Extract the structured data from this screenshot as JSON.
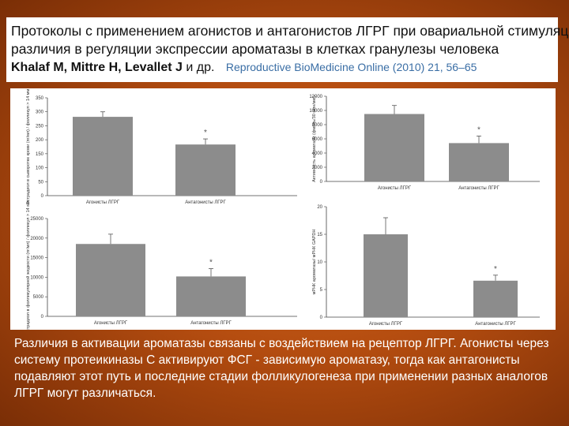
{
  "header": {
    "line1": "Протоколы с применением агонистов и антагонистов ЛГРГ при овариальной стимуляции:",
    "line2": "различия в регуляции экспрессии ароматазы в клетках гранулезы человека",
    "authors_bold": "Khalaf M, Mittre H, Levallet J",
    "authors_suffix": "и др.",
    "journal": "Reproductive BioMedicine Online (2010) 21, 56–65"
  },
  "caption": "Различия в активации ароматазы связаны с воздействием на рецептор ЛГРГ. Агонисты через систему протеикиназы С активируют ФСГ - зависимую ароматазу, тогда как антагонисты подавляют этот путь и последние стадии фолликулогенеза при применении разных аналогов ЛГРГ могут различаться.",
  "colors": {
    "background": "#b54d10",
    "bar": "#8c8c8c",
    "caption_text": "#ffffff",
    "journal_text": "#3a6ea5"
  },
  "chart_data": [
    {
      "type": "bar",
      "categories": [
        "Агонисты ЛГРГ",
        "Антагонисты ЛГРГ"
      ],
      "values": [
        282,
        183
      ],
      "errors": [
        18,
        20
      ],
      "annotations": [
        "",
        "*"
      ],
      "ylabel": "Эстрадиол в сыворотке крови (пг/мл) / фолликул > 14 мм",
      "ylim": [
        0,
        350
      ],
      "yticks": [
        0,
        50,
        100,
        150,
        200,
        250,
        300,
        350
      ]
    },
    {
      "type": "bar",
      "categories": [
        "Агонисты ЛГРГ",
        "Антагонисты ЛГРГ"
      ],
      "values": [
        9500,
        5400
      ],
      "errors": [
        1200,
        1000
      ],
      "annotations": [
        "",
        "*"
      ],
      "ylabel": "Активность ароматазы (фмоль/30 мин/мкг)",
      "ylim": [
        0,
        12000
      ],
      "yticks": [
        0,
        2000,
        4000,
        6000,
        8000,
        10000,
        12000
      ]
    },
    {
      "type": "bar",
      "categories": [
        "Агонисты ЛГРГ",
        "Антагонисты ЛГРГ"
      ],
      "values": [
        18500,
        10200
      ],
      "errors": [
        2500,
        2000
      ],
      "annotations": [
        "",
        "*"
      ],
      "ylabel": "Эстрадиол в фолликулярной жидкости (пг/мл) / фолликул > 14 мм",
      "ylim": [
        0,
        25000
      ],
      "yticks": [
        0,
        5000,
        10000,
        15000,
        20000,
        25000
      ]
    },
    {
      "type": "bar",
      "categories": [
        "Агонисты ЛГРГ",
        "Антагонисты ЛГРГ"
      ],
      "values": [
        15,
        6.6
      ],
      "errors": [
        3,
        1
      ],
      "annotations": [
        "",
        "*"
      ],
      "ylabel": "мРНК ароматазы/ мРНК GAPDH",
      "ylim": [
        0,
        20
      ],
      "yticks": [
        0,
        5,
        10,
        15,
        20
      ]
    }
  ]
}
